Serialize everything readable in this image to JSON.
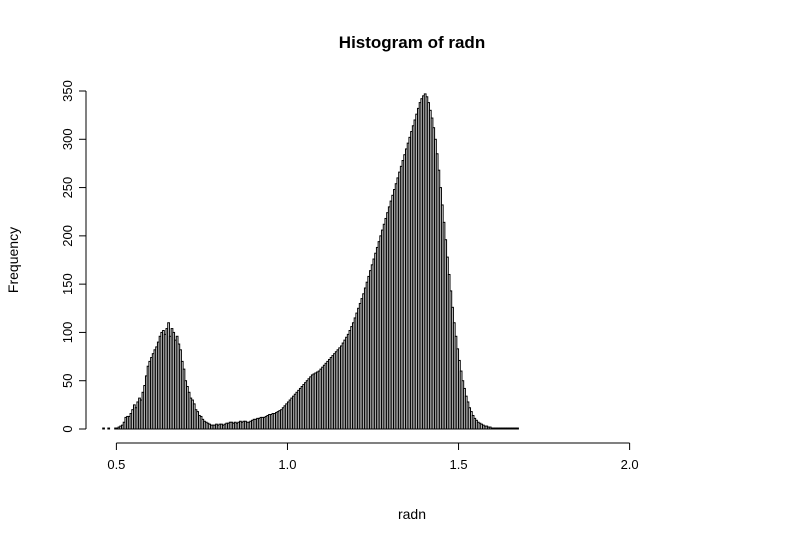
{
  "chart_data": {
    "type": "bar",
    "title": "Histogram of radn",
    "xlabel": "radn",
    "ylabel": "Frequency",
    "bin_width": 0.005,
    "x_start": 0.455,
    "xlim": [
      0.455,
      2.27
    ],
    "ylim": [
      0,
      350
    ],
    "x_ticks": [
      "0.5",
      "1.0",
      "1.5",
      "2.0"
    ],
    "y_ticks": [
      "0",
      "50",
      "100",
      "150",
      "200",
      "250",
      "300",
      "350"
    ],
    "grid": false,
    "values": [
      0,
      1,
      0,
      0,
      1,
      0,
      0,
      0,
      1,
      1,
      2,
      3,
      4,
      7,
      12,
      13,
      13,
      16,
      20,
      25,
      22,
      28,
      32,
      30,
      38,
      45,
      55,
      65,
      70,
      74,
      78,
      82,
      85,
      90,
      96,
      100,
      102,
      98,
      104,
      110,
      96,
      104,
      100,
      92,
      96,
      88,
      82,
      70,
      62,
      50,
      44,
      38,
      32,
      30,
      26,
      20,
      18,
      14,
      13,
      10,
      8,
      7,
      6,
      5,
      4,
      4,
      4,
      5,
      4,
      5,
      5,
      4,
      5,
      6,
      6,
      7,
      7,
      6,
      7,
      6,
      7,
      8,
      7,
      8,
      8,
      7,
      7,
      8,
      9,
      10,
      10,
      11,
      11,
      12,
      12,
      12,
      13,
      14,
      15,
      15,
      16,
      16,
      17,
      18,
      19,
      20,
      22,
      24,
      26,
      28,
      30,
      32,
      34,
      36,
      38,
      40,
      42,
      44,
      46,
      48,
      50,
      52,
      54,
      56,
      57,
      58,
      59,
      60,
      62,
      64,
      66,
      68,
      70,
      72,
      74,
      76,
      78,
      80,
      82,
      84,
      86,
      89,
      92,
      95,
      98,
      102,
      106,
      110,
      115,
      120,
      125,
      130,
      135,
      140,
      146,
      152,
      158,
      164,
      170,
      176,
      182,
      188,
      194,
      200,
      206,
      212,
      218,
      224,
      230,
      236,
      242,
      248,
      254,
      260,
      266,
      272,
      278,
      284,
      290,
      296,
      302,
      308,
      314,
      320,
      326,
      332,
      338,
      342,
      345,
      347,
      344,
      338,
      330,
      322,
      312,
      300,
      285,
      268,
      250,
      232,
      214,
      196,
      178,
      160,
      143,
      126,
      110,
      96,
      83,
      71,
      60,
      50,
      42,
      34,
      28,
      22,
      18,
      14,
      11,
      9,
      7,
      6,
      5,
      4,
      3,
      3,
      2,
      2,
      1,
      1,
      1,
      1,
      1,
      1,
      1,
      1,
      1,
      1,
      1,
      1,
      1,
      1,
      1,
      1
    ]
  }
}
